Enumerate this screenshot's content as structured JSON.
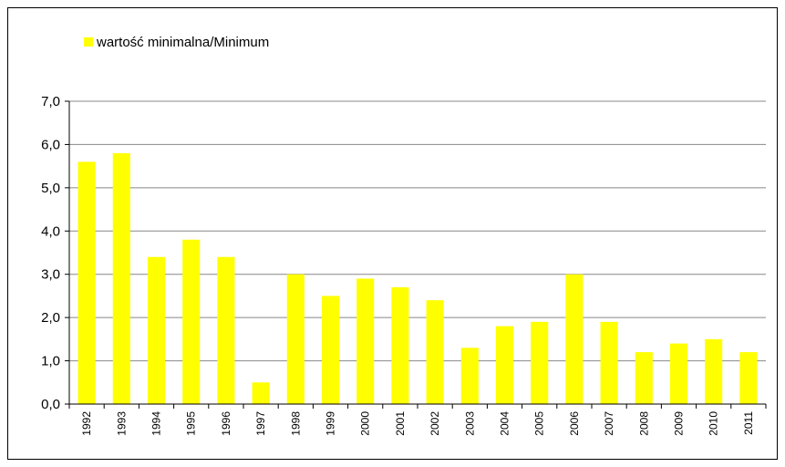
{
  "chart_data": {
    "type": "bar",
    "categories": [
      "1992",
      "1993",
      "1994",
      "1995",
      "1996",
      "1997",
      "1998",
      "1999",
      "2000",
      "2001",
      "2002",
      "2003",
      "2004",
      "2005",
      "2006",
      "2007",
      "2008",
      "2009",
      "2010",
      "2011"
    ],
    "series": [
      {
        "name": "wartość minimalna/Minimum",
        "color": "#ffff00",
        "values": [
          5.6,
          5.8,
          3.4,
          3.8,
          3.4,
          0.5,
          3.0,
          2.5,
          2.9,
          2.7,
          2.4,
          1.3,
          1.8,
          1.9,
          3.0,
          1.9,
          1.2,
          1.4,
          1.5,
          1.2
        ]
      }
    ],
    "ylim": [
      0,
      7
    ],
    "yticks": [
      {
        "value": 0,
        "label": "0,0"
      },
      {
        "value": 1,
        "label": "1,0"
      },
      {
        "value": 2,
        "label": "2,0"
      },
      {
        "value": 3,
        "label": "3,0"
      },
      {
        "value": 4,
        "label": "4,0"
      },
      {
        "value": 5,
        "label": "5,0"
      },
      {
        "value": 6,
        "label": "6,0"
      },
      {
        "value": 7,
        "label": "7,0"
      }
    ],
    "grid": true
  }
}
